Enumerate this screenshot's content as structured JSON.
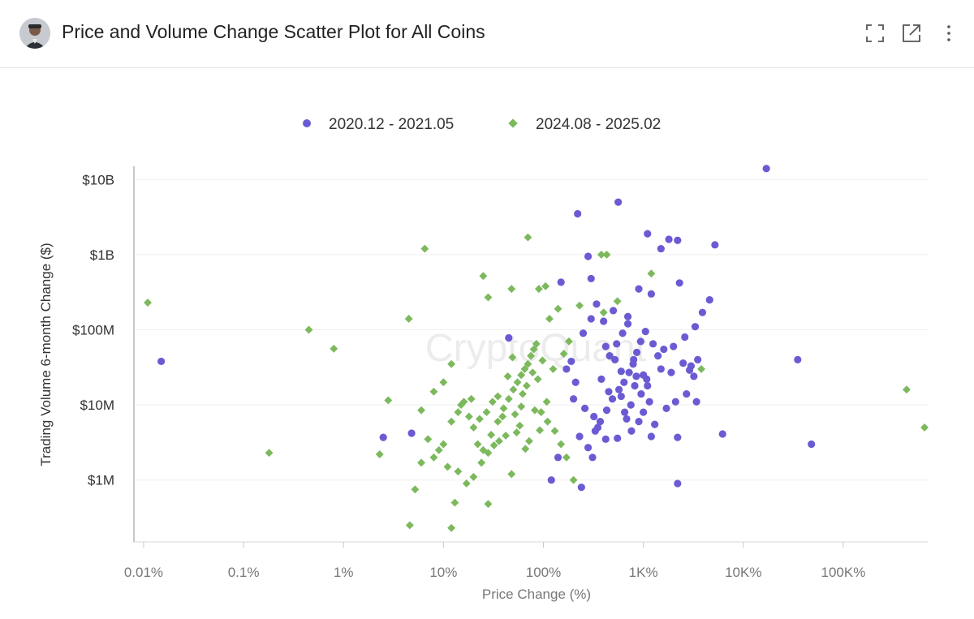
{
  "header": {
    "title": "Price and Volume Change Scatter Plot for All Coins",
    "icons": [
      "expand-icon",
      "open-external-icon",
      "more-menu-icon"
    ]
  },
  "watermark": "CryptoQuant",
  "chart_data": {
    "type": "scatter",
    "xlabel": "Price Change (%)",
    "ylabel": "Trading Volume 6-month Change ($)",
    "xscale": "log",
    "yscale": "log",
    "xlim": [
      0.008,
      700000
    ],
    "ylim": [
      150000,
      15000000000
    ],
    "x_ticks": [
      {
        "value": 0.01,
        "label": "0.01%"
      },
      {
        "value": 0.1,
        "label": "0.1%"
      },
      {
        "value": 1,
        "label": "1%"
      },
      {
        "value": 10,
        "label": "10%"
      },
      {
        "value": 100,
        "label": "100%"
      },
      {
        "value": 1000,
        "label": "1K%"
      },
      {
        "value": 10000,
        "label": "10K%"
      },
      {
        "value": 100000,
        "label": "100K%"
      }
    ],
    "y_ticks": [
      {
        "value": 1000000,
        "label": "$1M"
      },
      {
        "value": 10000000,
        "label": "$10M"
      },
      {
        "value": 100000000,
        "label": "$100M"
      },
      {
        "value": 1000000000,
        "label": "$1B"
      },
      {
        "value": 10000000000,
        "label": "$10B"
      }
    ],
    "grid": true,
    "legend_position": "top-center",
    "series": [
      {
        "name": "2020.12 - 2021.05",
        "color": "#6b5bd3",
        "marker": "circle",
        "points": [
          [
            0.015,
            38000000
          ],
          [
            2.5,
            3700000
          ],
          [
            4.8,
            4200000
          ],
          [
            45,
            78000000
          ],
          [
            120,
            1000000
          ],
          [
            220,
            3500000000
          ],
          [
            240,
            800000
          ],
          [
            560,
            5000000000
          ],
          [
            1100,
            1900000000
          ],
          [
            1500,
            1200000000
          ],
          [
            1800,
            1600000000
          ],
          [
            2200,
            1550000000
          ],
          [
            5200,
            1350000000
          ],
          [
            17000,
            14000000000
          ],
          [
            2300,
            420000000
          ],
          [
            4600,
            250000000
          ],
          [
            6200,
            4100000
          ],
          [
            35000,
            40000000
          ],
          [
            48000,
            3000000
          ],
          [
            2200,
            900000
          ],
          [
            500,
            180000000
          ],
          [
            700,
            150000000
          ],
          [
            300,
            140000000
          ],
          [
            900,
            350000000
          ],
          [
            1200,
            300000000
          ],
          [
            800,
            40000000
          ],
          [
            1000,
            25000000
          ],
          [
            600,
            28000000
          ],
          [
            450,
            15000000
          ],
          [
            650,
            8000000
          ],
          [
            900,
            6000000
          ],
          [
            350,
            5000000
          ],
          [
            420,
            3500000
          ],
          [
            550,
            3600000
          ],
          [
            1300,
            5500000
          ],
          [
            750,
            10000000
          ],
          [
            1100,
            18000000
          ],
          [
            1500,
            30000000
          ],
          [
            2000,
            60000000
          ],
          [
            2600,
            80000000
          ],
          [
            3300,
            110000000
          ],
          [
            3900,
            170000000
          ],
          [
            200,
            12000000
          ],
          [
            260,
            9000000
          ],
          [
            320,
            7000000
          ],
          [
            380,
            22000000
          ],
          [
            460,
            45000000
          ],
          [
            540,
            65000000
          ],
          [
            620,
            90000000
          ],
          [
            700,
            120000000
          ],
          [
            850,
            24000000
          ],
          [
            950,
            14000000
          ],
          [
            1150,
            11000000
          ],
          [
            1700,
            9000000
          ],
          [
            2500,
            36000000
          ],
          [
            3200,
            24000000
          ],
          [
            250,
            90000000
          ],
          [
            400,
            130000000
          ],
          [
            170,
            30000000
          ],
          [
            150,
            430000000
          ],
          [
            190,
            38000000
          ],
          [
            210,
            20000000
          ],
          [
            230,
            3800000
          ],
          [
            280,
            2700000
          ],
          [
            330,
            4500000
          ],
          [
            370,
            6000000
          ],
          [
            430,
            8500000
          ],
          [
            490,
            12000000
          ],
          [
            570,
            16000000
          ],
          [
            640,
            20000000
          ],
          [
            720,
            27000000
          ],
          [
            790,
            35000000
          ],
          [
            860,
            50000000
          ],
          [
            940,
            70000000
          ],
          [
            1050,
            95000000
          ],
          [
            1250,
            65000000
          ],
          [
            1400,
            45000000
          ],
          [
            1600,
            55000000
          ],
          [
            1900,
            27000000
          ],
          [
            2100,
            11000000
          ],
          [
            2700,
            14000000
          ],
          [
            3000,
            33000000
          ],
          [
            3500,
            40000000
          ],
          [
            300,
            480000000
          ],
          [
            340,
            220000000
          ],
          [
            420,
            60000000
          ],
          [
            520,
            40000000
          ],
          [
            600,
            13000000
          ],
          [
            680,
            6500000
          ],
          [
            760,
            4500000
          ],
          [
            820,
            18000000
          ],
          [
            1000,
            8000000
          ],
          [
            1080,
            22000000
          ],
          [
            1200,
            3800000
          ],
          [
            2200,
            3700000
          ],
          [
            2900,
            29000000
          ],
          [
            3400,
            11000000
          ],
          [
            310,
            2000000
          ],
          [
            140,
            2000000
          ],
          [
            280,
            950000000
          ]
        ]
      },
      {
        "name": "2024.08 - 2025.02",
        "color": "#7cb95d",
        "marker": "diamond",
        "points": [
          [
            0.011,
            230000000
          ],
          [
            0.18,
            2300000
          ],
          [
            0.45,
            100000000
          ],
          [
            0.8,
            56000000
          ],
          [
            2.3,
            2200000
          ],
          [
            2.8,
            11500000
          ],
          [
            4.5,
            140000000
          ],
          [
            6.5,
            1200000000
          ],
          [
            4.6,
            250000
          ],
          [
            5.2,
            750000
          ],
          [
            12,
            230000
          ],
          [
            13,
            500000
          ],
          [
            28,
            480000
          ],
          [
            25,
            520000000
          ],
          [
            28,
            270000000
          ],
          [
            48,
            350000000
          ],
          [
            70,
            1700000000
          ],
          [
            90,
            350000000
          ],
          [
            105,
            380000000
          ],
          [
            115,
            140000000
          ],
          [
            140,
            190000000
          ],
          [
            230,
            210000000
          ],
          [
            380,
            1000000000
          ],
          [
            400,
            170000000
          ],
          [
            550,
            240000000
          ],
          [
            430,
            1000000000
          ],
          [
            1200,
            560000000
          ],
          [
            3800,
            30000000
          ],
          [
            430000,
            16000000
          ],
          [
            650000,
            5000000
          ],
          [
            6,
            8500000
          ],
          [
            8,
            15000000
          ],
          [
            10,
            20000000
          ],
          [
            12,
            35000000
          ],
          [
            15,
            10000000
          ],
          [
            18,
            7000000
          ],
          [
            20,
            5000000
          ],
          [
            22,
            3000000
          ],
          [
            25,
            2500000
          ],
          [
            30,
            4000000
          ],
          [
            35,
            6000000
          ],
          [
            40,
            9000000
          ],
          [
            45,
            12000000
          ],
          [
            50,
            16000000
          ],
          [
            55,
            20000000
          ],
          [
            60,
            25000000
          ],
          [
            65,
            30000000
          ],
          [
            70,
            35000000
          ],
          [
            75,
            45000000
          ],
          [
            80,
            55000000
          ],
          [
            85,
            65000000
          ],
          [
            95,
            8000000
          ],
          [
            110,
            6000000
          ],
          [
            130,
            4500000
          ],
          [
            150,
            3000000
          ],
          [
            170,
            2000000
          ],
          [
            200,
            1000000
          ],
          [
            7,
            3500000
          ],
          [
            9,
            2500000
          ],
          [
            11,
            1500000
          ],
          [
            14,
            1300000
          ],
          [
            17,
            900000
          ],
          [
            20,
            1100000
          ],
          [
            24,
            1700000
          ],
          [
            28,
            2300000
          ],
          [
            32,
            2900000
          ],
          [
            36,
            3300000
          ],
          [
            42,
            3900000
          ],
          [
            48,
            1200000
          ],
          [
            52,
            7500000
          ],
          [
            58,
            5300000
          ],
          [
            62,
            14000000
          ],
          [
            68,
            18000000
          ],
          [
            78,
            27000000
          ],
          [
            88,
            22000000
          ],
          [
            98,
            39000000
          ],
          [
            108,
            11000000
          ],
          [
            125,
            30000000
          ],
          [
            160,
            48000000
          ],
          [
            180,
            70000000
          ],
          [
            6,
            1700000
          ],
          [
            8,
            2000000
          ],
          [
            10,
            3000000
          ],
          [
            12,
            6000000
          ],
          [
            14,
            8000000
          ],
          [
            16,
            11000000
          ],
          [
            19,
            12000000
          ],
          [
            23,
            6500000
          ],
          [
            27,
            8000000
          ],
          [
            31,
            11000000
          ],
          [
            35,
            13000000
          ],
          [
            39,
            7000000
          ],
          [
            44,
            24000000
          ],
          [
            49,
            43000000
          ],
          [
            54,
            4300000
          ],
          [
            60,
            9500000
          ],
          [
            66,
            2600000
          ],
          [
            72,
            3300000
          ],
          [
            82,
            8500000
          ],
          [
            92,
            4600000
          ]
        ]
      }
    ]
  }
}
